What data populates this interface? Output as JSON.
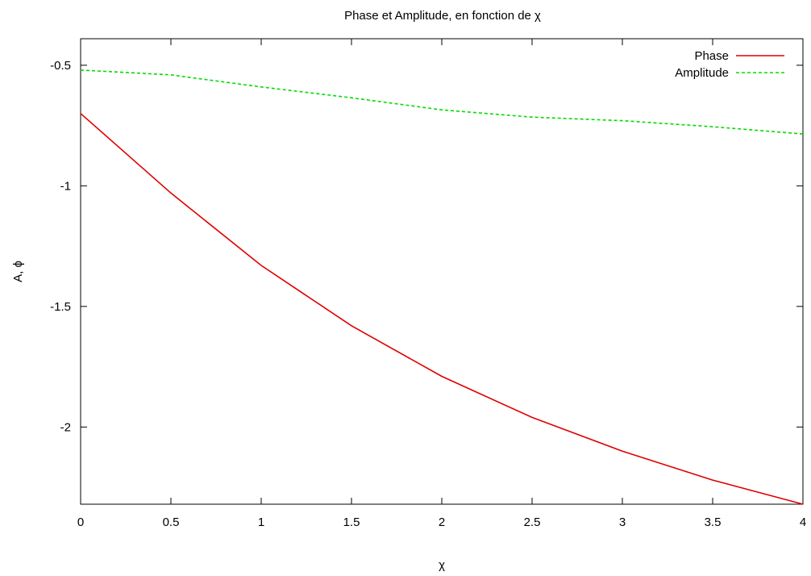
{
  "chart_data": {
    "type": "line",
    "title": "Phase et Amplitude, en fonction de χ",
    "xlabel": "χ",
    "ylabel": "A, ϕ",
    "xlim": [
      0,
      4
    ],
    "ylim": [
      -2.32,
      -0.39
    ],
    "x_ticks": [
      "0",
      "0.5",
      "1",
      "1.5",
      "2",
      "2.5",
      "3",
      "3.5",
      "4"
    ],
    "y_ticks": [
      "-0.5",
      "-1",
      "-1.5",
      "-2"
    ],
    "grid": false,
    "legend_position": "top-right",
    "series": [
      {
        "name": "Phase",
        "color": "#e00000",
        "style": "solid",
        "x": [
          0,
          0.5,
          1,
          1.5,
          2,
          2.5,
          3,
          3.5,
          4
        ],
        "values": [
          -0.7,
          -1.03,
          -1.33,
          -1.58,
          -1.79,
          -1.96,
          -2.1,
          -2.22,
          -2.32
        ]
      },
      {
        "name": "Amplitude",
        "color": "#00dd00",
        "style": "dashed",
        "x": [
          0,
          0.5,
          1,
          1.5,
          2,
          2.5,
          3,
          3.5,
          4
        ],
        "values": [
          -0.52,
          -0.54,
          -0.59,
          -0.635,
          -0.685,
          -0.715,
          -0.73,
          -0.755,
          -0.785
        ]
      }
    ]
  }
}
